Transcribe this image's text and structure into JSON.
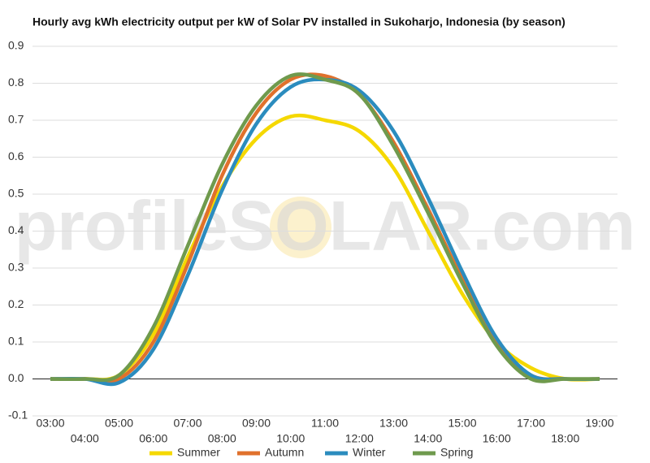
{
  "chart_data": {
    "type": "line",
    "title": "Hourly avg kWh electricity output per kW of Solar PV installed in Sukoharjo, Indonesia (by season)",
    "watermark": "profileSOLAR.com",
    "categories": [
      "03:00",
      "04:00",
      "05:00",
      "06:00",
      "07:00",
      "08:00",
      "09:00",
      "10:00",
      "11:00",
      "12:00",
      "13:00",
      "14:00",
      "15:00",
      "16:00",
      "17:00",
      "18:00",
      "19:00"
    ],
    "series": [
      {
        "name": "Summer",
        "color": "#f5d800",
        "values": [
          0,
          0,
          0.01,
          0.12,
          0.33,
          0.52,
          0.65,
          0.71,
          0.7,
          0.67,
          0.57,
          0.4,
          0.23,
          0.1,
          0.03,
          0,
          0
        ]
      },
      {
        "name": "Autumn",
        "color": "#e0712c",
        "values": [
          0,
          0,
          0,
          0.1,
          0.31,
          0.55,
          0.72,
          0.81,
          0.82,
          0.77,
          0.64,
          0.46,
          0.27,
          0.1,
          0.01,
          0,
          0
        ]
      },
      {
        "name": "Winter",
        "color": "#2b8cbe",
        "values": [
          0,
          0,
          -0.01,
          0.08,
          0.28,
          0.51,
          0.69,
          0.79,
          0.81,
          0.78,
          0.67,
          0.49,
          0.29,
          0.11,
          0.01,
          0,
          0
        ]
      },
      {
        "name": "Spring",
        "color": "#6f9a4d",
        "values": [
          0,
          0,
          0.01,
          0.14,
          0.36,
          0.58,
          0.74,
          0.82,
          0.81,
          0.77,
          0.63,
          0.45,
          0.26,
          0.09,
          0,
          0,
          0
        ]
      }
    ],
    "ylim": [
      -0.1,
      0.9
    ],
    "yticks": [
      -0.1,
      {
        "value": 0,
        "label": "0.0"
      },
      0.1,
      0.2,
      0.3,
      0.4,
      0.5,
      0.6,
      0.7,
      0.8,
      0.9
    ],
    "grid": true,
    "legend": "bottom"
  }
}
